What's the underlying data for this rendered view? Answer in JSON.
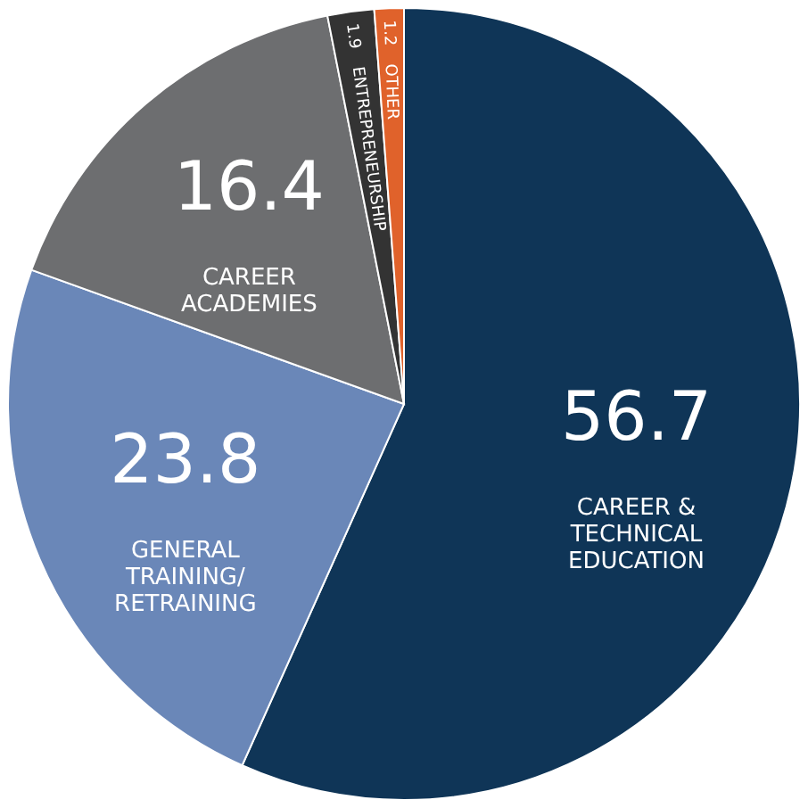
{
  "chart_data": {
    "type": "pie",
    "categories": [
      "CAREER &\nTECHNICAL\nEDUCATION",
      "GENERAL\nTRAINING/\nRETRAINING",
      "CAREER\nACADEMIES",
      "ENTREPRENEURSHIP",
      "OTHER"
    ],
    "values": [
      56.7,
      23.8,
      16.4,
      1.9,
      1.2
    ],
    "colors": [
      "#0f3557",
      "#6a87b8",
      "#6d6e70",
      "#333333",
      "#e0622b"
    ],
    "data_labels": true
  }
}
